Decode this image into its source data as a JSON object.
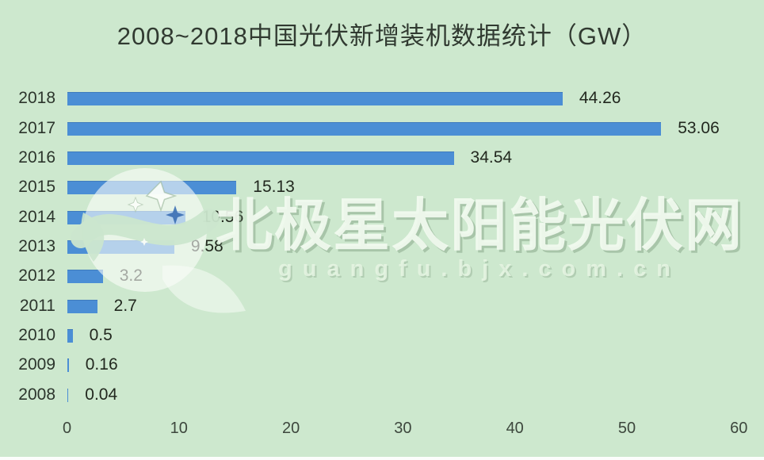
{
  "title": "2008~2018中国光伏新增装机数据统计（GW）",
  "watermark": {
    "logo": "sparkle-circle-logo",
    "text": "北极星太阳能光伏网",
    "url_text": "guangfu.bjx.com.cn"
  },
  "colors": {
    "background": "#cde8ce",
    "bar": "#4b8ed5",
    "title_text": "#313a31",
    "label_text": "#2c352c",
    "value_text": "#22281f",
    "axis_text": "#3d473d",
    "watermark_text": "#f2faf0"
  },
  "chart_data": {
    "type": "bar",
    "orientation": "horizontal",
    "title": "2008~2018中国光伏新增装机数据统计（GW）",
    "categories": [
      "2018",
      "2017",
      "2016",
      "2015",
      "2014",
      "2013",
      "2012",
      "2011",
      "2010",
      "2009",
      "2008"
    ],
    "values": [
      44.26,
      53.06,
      34.54,
      15.13,
      10.56,
      9.58,
      3.2,
      2.7,
      0.5,
      0.16,
      0.04
    ],
    "value_labels": [
      "44.26",
      "53.06",
      "34.54",
      "15.13",
      "10.56",
      "9.58",
      "3.2",
      "2.7",
      "0.5",
      "0.16",
      "0.04"
    ],
    "xlabel": "",
    "ylabel": "",
    "xlim": [
      0,
      60
    ],
    "x_ticks": [
      "0",
      "10",
      "20",
      "30",
      "40",
      "50",
      "60"
    ],
    "grid": false,
    "legend": null,
    "unit": "GW"
  }
}
